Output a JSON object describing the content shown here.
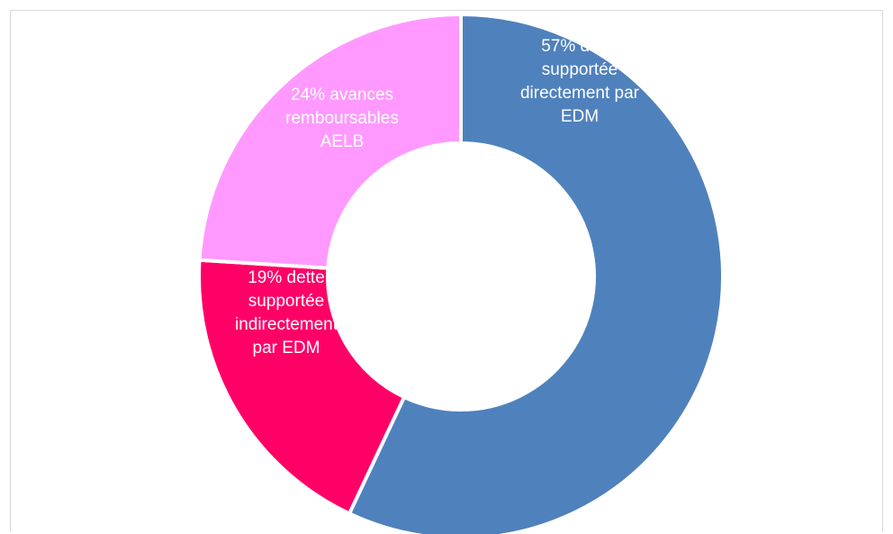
{
  "chart_data": {
    "type": "pie",
    "variant": "doughnut",
    "title": "",
    "slices": [
      {
        "label": "57% dette supportée directement par EDM",
        "label_lines": [
          "57% dette",
          "supportée",
          "directement par",
          "EDM"
        ],
        "value": 57,
        "color": "#4f81bd"
      },
      {
        "label": "19% dette supportée indirectement par EDM",
        "label_lines": [
          "19% dette",
          "supportée",
          "indirectement",
          "par EDM"
        ],
        "value": 19,
        "color": "#ff0066"
      },
      {
        "label": "24% avances remboursables AELB",
        "label_lines": [
          "24% avances",
          "remboursables",
          "AELB"
        ],
        "value": 24,
        "color": "#ff99ff"
      }
    ],
    "legend": "none",
    "grid": false
  }
}
